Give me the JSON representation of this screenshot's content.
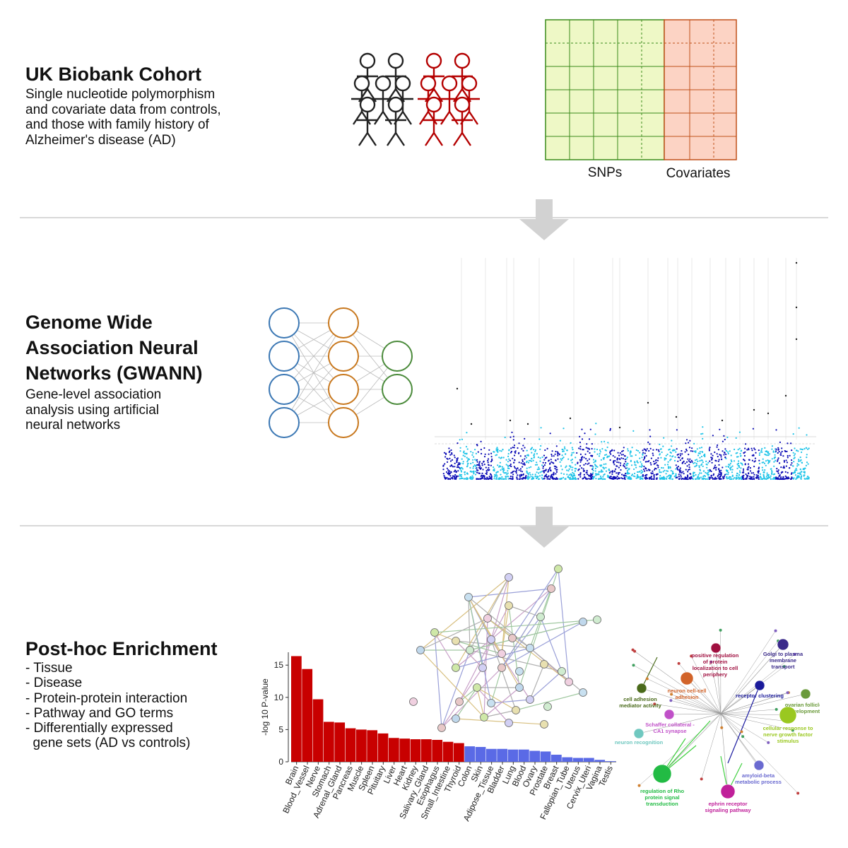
{
  "sections": {
    "cohort": {
      "title": "UK Biobank Cohort",
      "desc": [
        "Single nucleotide polymorphism",
        "and covariate data from controls,",
        "and those with family history of",
        "Alzheimer's disease (AD)"
      ],
      "matrix_labels": {
        "snps": "SNPs",
        "covariates": "Covariates"
      },
      "colors": {
        "control": "#222222",
        "family_history": "#b40000",
        "snp_fill": "#eef8c6",
        "snp_stroke": "#3a8a1a",
        "cov_fill": "#fcd3c4",
        "cov_stroke": "#c0501a"
      }
    },
    "gwann": {
      "title_lines": [
        "Genome Wide",
        "Association Neural",
        "Networks (GWANN)"
      ],
      "desc": [
        "Gene-level association",
        "analysis using artificial",
        "neural networks"
      ],
      "layers": [
        4,
        4,
        2
      ],
      "layer_colors": [
        "#3c78b4",
        "#c8781e",
        "#4a8a3a"
      ],
      "manhattan_colors": [
        "#0b0bb5",
        "#1fc4e8"
      ]
    },
    "enrichment": {
      "title": "Post-hoc Enrichment",
      "items": [
        "- Tissue",
        "- Disease",
        "- Protein-protein interaction",
        "- Pathway and GO terms",
        "- Differentially expressed",
        "  gene sets (AD vs controls)"
      ]
    }
  },
  "chart_data": {
    "type": "bar",
    "ylabel": "-log 10 P-value",
    "ylim": [
      0,
      17
    ],
    "yticks": [
      0,
      5,
      10,
      15
    ],
    "categories": [
      "Brain",
      "Blood_Vessel",
      "Nerve",
      "Stomach",
      "Adrenal_Gland",
      "Pancreas",
      "Muscle",
      "Spleen",
      "Pituitary",
      "Liver",
      "Heart",
      "Kidney",
      "Salivary_Gland",
      "Esophagus",
      "Small_Intestine",
      "Thyroid",
      "Colon",
      "Skin",
      "Adipose_Tissue",
      "Bladder",
      "Lung",
      "Blood",
      "Ovary",
      "Prostate",
      "Breast",
      "Fallopian_Tube",
      "Uterus",
      "Cervix_Uteri",
      "Vagina",
      "Testis"
    ],
    "values": [
      16.4,
      14.4,
      9.7,
      6.2,
      6.1,
      5.2,
      5.0,
      4.9,
      4.4,
      3.7,
      3.6,
      3.5,
      3.5,
      3.4,
      3.1,
      2.9,
      2.4,
      2.3,
      2.0,
      2.0,
      1.9,
      1.9,
      1.7,
      1.6,
      1.1,
      0.7,
      0.6,
      0.6,
      0.3,
      0.1
    ],
    "colors": {
      "significant": "#c80000",
      "nonsignificant": "#5a6ae6"
    },
    "significant_count": 16
  },
  "go_network": {
    "terms": [
      {
        "label": [
          "Golgi to plasma",
          "membrane",
          "transport"
        ],
        "color": "#3a2a8a"
      },
      {
        "label": [
          "positive regulation",
          "of protein",
          "localization to cell",
          "periphery"
        ],
        "color": "#a01040"
      },
      {
        "label": [
          "neuron cell-cell",
          "adhesion"
        ],
        "color": "#d2642a"
      },
      {
        "label": [
          "cell adhesion",
          "mediator activity"
        ],
        "color": "#4a6a1a"
      },
      {
        "label": [
          "receptor clustering"
        ],
        "color": "#1a1a9a"
      },
      {
        "label": [
          "ovarian follicle",
          "development"
        ],
        "color": "#6a9a3a"
      },
      {
        "label": [
          "Schaffer collateral -",
          "CA1 synapse"
        ],
        "color": "#c050c8"
      },
      {
        "label": [
          "neuron recognition"
        ],
        "color": "#70c8c0"
      },
      {
        "label": [
          "cellular response to",
          "nerve growth factor",
          "stimulus"
        ],
        "color": "#9ac820"
      },
      {
        "label": [
          "amyloid-beta",
          "metabolic process"
        ],
        "color": "#6a6ad0"
      },
      {
        "label": [
          "regulation of Rho",
          "protein signal",
          "transduction"
        ],
        "color": "#22bb44"
      },
      {
        "label": [
          "ephrin receptor",
          "signaling pathway"
        ],
        "color": "#c0209a"
      }
    ]
  }
}
